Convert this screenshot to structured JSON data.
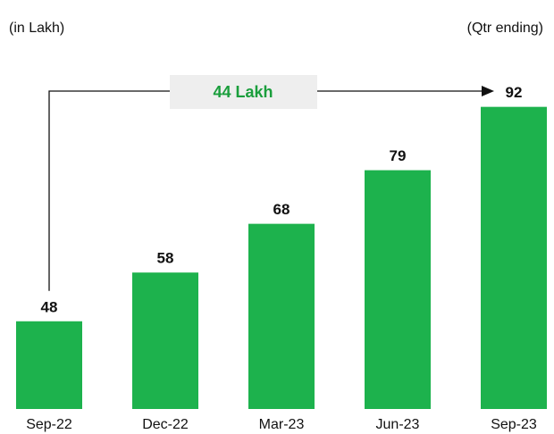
{
  "chart_data": {
    "type": "bar",
    "subtitle": "(in Lakh)",
    "note": "(Qtr ending)",
    "annotation": "44 Lakh",
    "categories": [
      "Sep-22",
      "Dec-22",
      "Mar-23",
      "Jun-23",
      "Sep-23"
    ],
    "values": [
      48,
      58,
      68,
      79,
      92
    ],
    "color": "#1db24d",
    "ylim": [
      30,
      100
    ]
  }
}
